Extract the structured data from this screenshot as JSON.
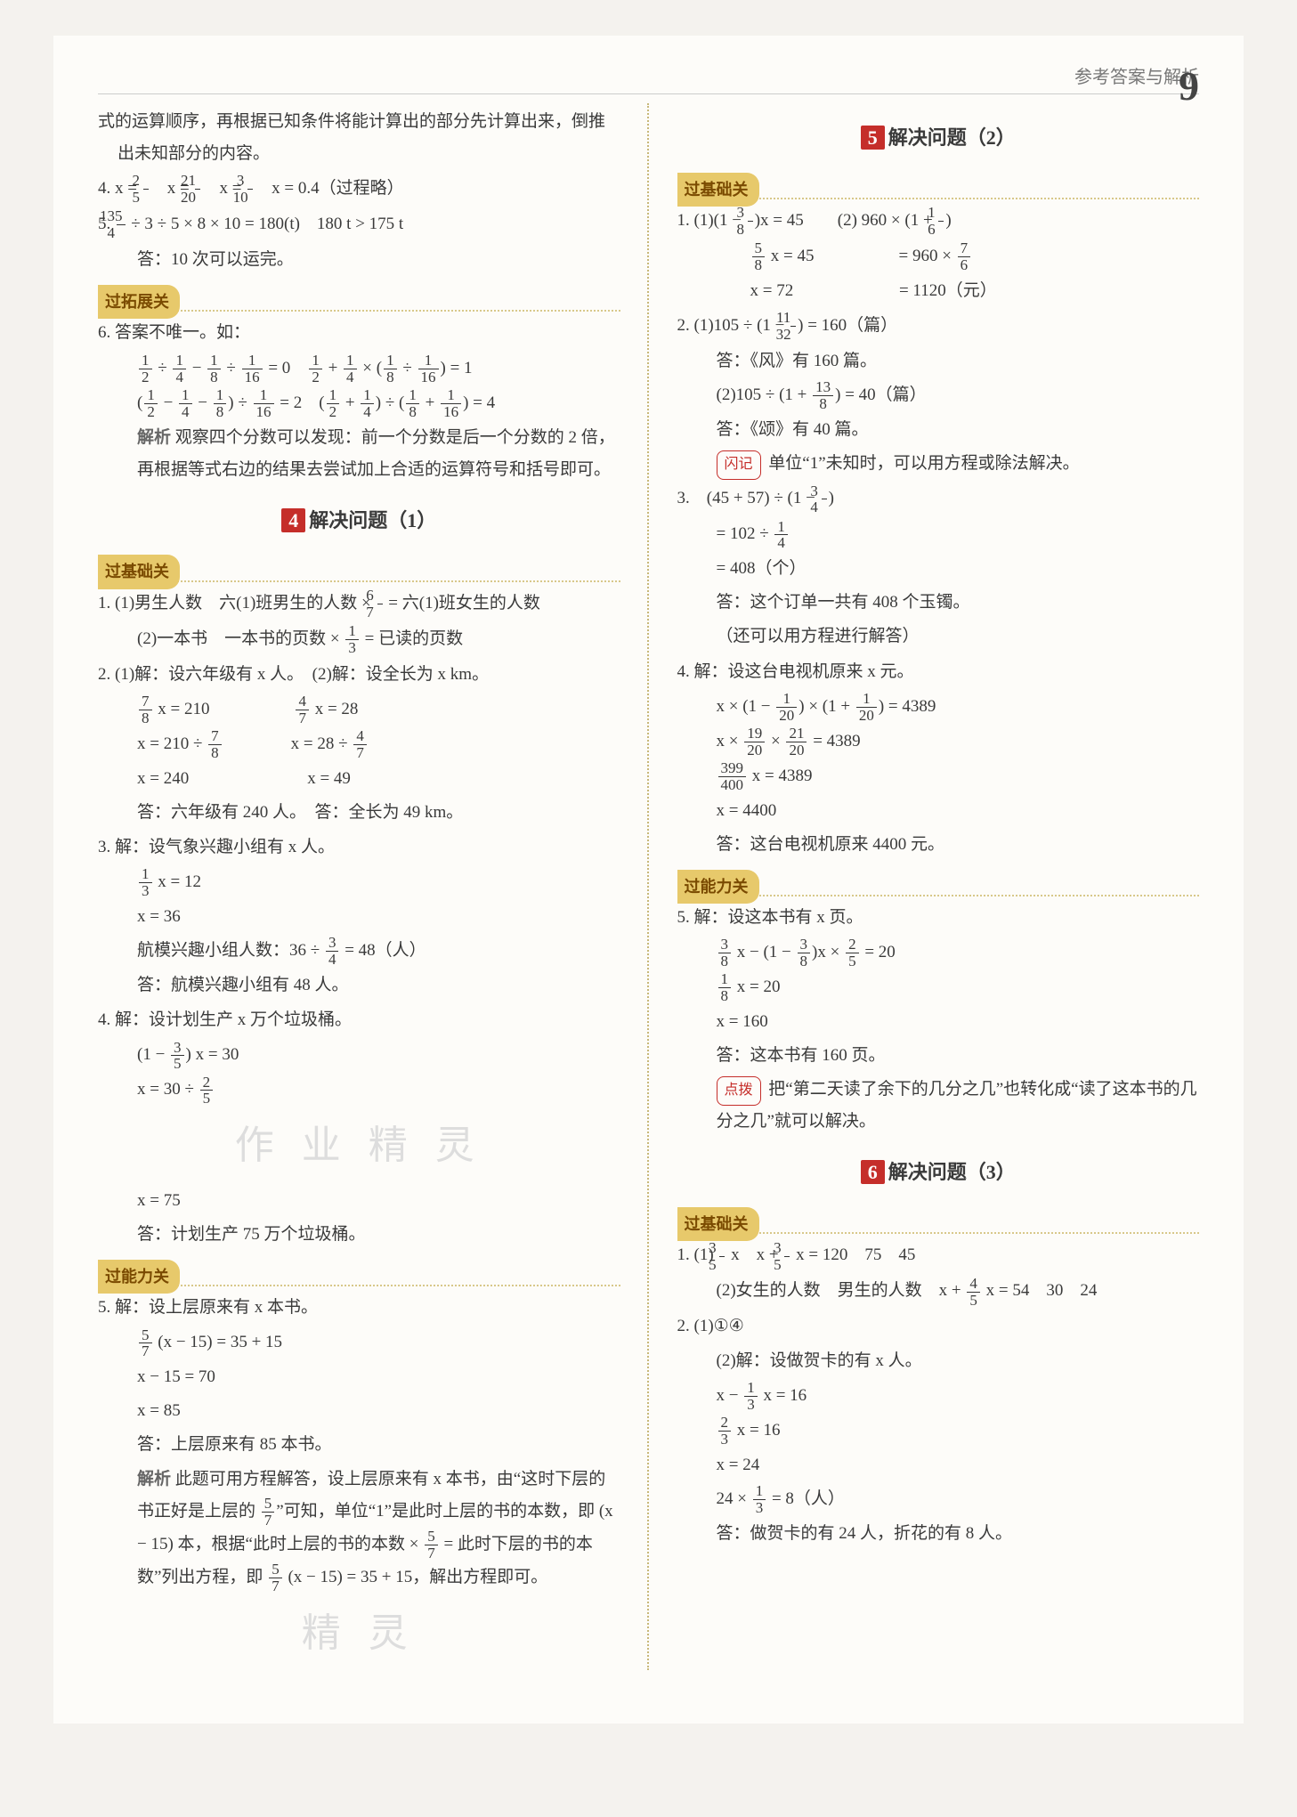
{
  "header_text": "参考答案与解析",
  "page_number": "9",
  "colors": {
    "accent": "#c52e2a",
    "tag_bg": "#e7c96b",
    "tag_fg": "#7a4a00",
    "sep": "#c8b87a",
    "body": "#3a3a3a"
  },
  "left": {
    "intro": "式的运算顺序，再根据已知条件将能计算出的部分先计算出来，倒推出未知部分的内容。",
    "q4": "4. x = 2/5　x = 21/20　x = 3/10　x = 0.4（过程略）",
    "q5a": "5. 135/4 ÷ 3 ÷ 5 × 8 × 10 = 180(t)　180 t > 175 t",
    "q5b": "答：10 次可以运完。",
    "tag_tuozhan": "过拓展关",
    "q6a": "6. 答案不唯一。如：",
    "q6b": "1/2 ÷ 1/4 − 1/8 ÷ 1/16 = 0　1/2 + 1/4 × (1/8 ÷ 1/16) = 1",
    "q6c": "(1/2 − 1/4 − 1/8) ÷ 1/16 = 2　(1/2 + 1/4) ÷ (1/8 + 1/16) = 4",
    "q6d_label": "解析",
    "q6d": "观察四个分数可以发现：前一个分数是后一个分数的 2 倍，再根据等式右边的结果去尝试加上合适的运算符号和括号即可。",
    "sec4_num": "4",
    "sec4_title": "解决问题（1）",
    "tag_jichu": "过基础关",
    "s4_1a": "1. (1)男生人数　六(1)班男生的人数 × 6/7 = 六(1)班女生的人数",
    "s4_1b": "(2)一本书　一本书的页数 × 1/3 = 已读的页数",
    "s4_2a": "2. (1)解：设六年级有 x 人。　(2)解：设全长为 x km。",
    "s4_2b": "7/8 x = 210　　　　　4/7 x = 28",
    "s4_2c": "x = 210 ÷ 7/8　　　　x = 28 ÷ 4/7",
    "s4_2d": "x = 240　　　　　　　x = 49",
    "s4_2e": "答：六年级有 240 人。　答：全长为 49 km。",
    "s4_3a": "3. 解：设气象兴趣小组有 x 人。",
    "s4_3b": "1/3 x = 12",
    "s4_3c": "x = 36",
    "s4_3d": "航模兴趣小组人数：36 ÷ 3/4 = 48（人）",
    "s4_3e": "答：航模兴趣小组有 48 人。",
    "s4_4a": "4. 解：设计划生产 x 万个垃圾桶。",
    "s4_4b": "(1 − 3/5) x = 30",
    "s4_4c": "x = 30 ÷ 2/5",
    "s4_4d": "x = 75",
    "s4_4e": "答：计划生产 75 万个垃圾桶。",
    "tag_nengli": "过能力关",
    "s4_5a": "5. 解：设上层原来有 x 本书。",
    "s4_5b": "5/7 (x − 15) = 35 + 15",
    "s4_5c": "x − 15 = 70",
    "s4_5d": "x = 85",
    "s4_5e": "答：上层原来有 85 本书。",
    "s4_5f_label": "解析",
    "s4_5f": "此题可用方程解答，设上层原来有 x 本书，由“这时下层的书正好是上层的 5/7”可知，单位“1”是此时上层的书的本数，即 (x − 15) 本，根据“此时上层的书的本数 × 5/7 = 此时下层的书的本数”列出方程，即 5/7 (x − 15) = 35 + 15，解出方程即可。"
  },
  "right": {
    "sec5_num": "5",
    "sec5_title": "解决问题（2）",
    "tag_jichu": "过基础关",
    "r1a": "1. (1)(1 − 3/8)x = 45　　(2) 960 × (1 + 1/6)",
    "r1b": "　　5/8 x = 45　　　　　= 960 × 7/6",
    "r1c": "　　x = 72　　　　　　 = 1120（元）",
    "r2a": "2. (1)105 ÷ (1 − 11/32) = 160（篇）",
    "r2b": "答：《风》有 160 篇。",
    "r2c": "(2)105 ÷ (1 + 13/8) = 40（篇）",
    "r2d": "答：《颂》有 40 篇。",
    "flash_label": "闪记",
    "flash": "单位“1”未知时，可以用方程或除法解决。",
    "r3a": "3.　(45 + 57) ÷ (1 − 3/4)",
    "r3b": "= 102 ÷ 1/4",
    "r3c": "= 408（个）",
    "r3d": "答：这个订单一共有 408 个玉镯。",
    "r3e": "（还可以用方程进行解答）",
    "r4a": "4. 解：设这台电视机原来 x 元。",
    "r4b": "x × (1 − 1/20) × (1 + 1/20) = 4389",
    "r4c": "x × 19/20 × 21/20 = 4389",
    "r4d": "399/400 x = 4389",
    "r4e": "x = 4400",
    "r4f": "答：这台电视机原来 4400 元。",
    "tag_nengli": "过能力关",
    "r5a": "5. 解：设这本书有 x 页。",
    "r5b": "3/8 x − (1 − 3/8)x × 2/5 = 20",
    "r5c": "1/8 x = 20",
    "r5d": "x = 160",
    "r5e": "答：这本书有 160 页。",
    "tip_label": "点拨",
    "tip": "把“第二天读了余下的几分之几”也转化成“读了这本书的几分之几”就可以解决。",
    "sec6_num": "6",
    "sec6_title": "解决问题（3）",
    "tag_jichu2": "过基础关",
    "s6_1a": "1. (1) 3/5 x　x + 3/5 x = 120　75　45",
    "s6_1b": "(2)女生的人数　男生的人数　x + 4/5 x = 54　30　24",
    "s6_2a": "2. (1)①④",
    "s6_2b": "(2)解：设做贺卡的有 x 人。",
    "s6_2c": "x − 1/3 x = 16",
    "s6_2d": "2/3 x = 16",
    "s6_2e": "x = 24",
    "s6_2f": "24 × 1/3 = 8（人）",
    "s6_2g": "答：做贺卡的有 24 人，折花的有 8 人。"
  },
  "watermark1": "作 业 精 灵",
  "watermark2": "精 灵"
}
